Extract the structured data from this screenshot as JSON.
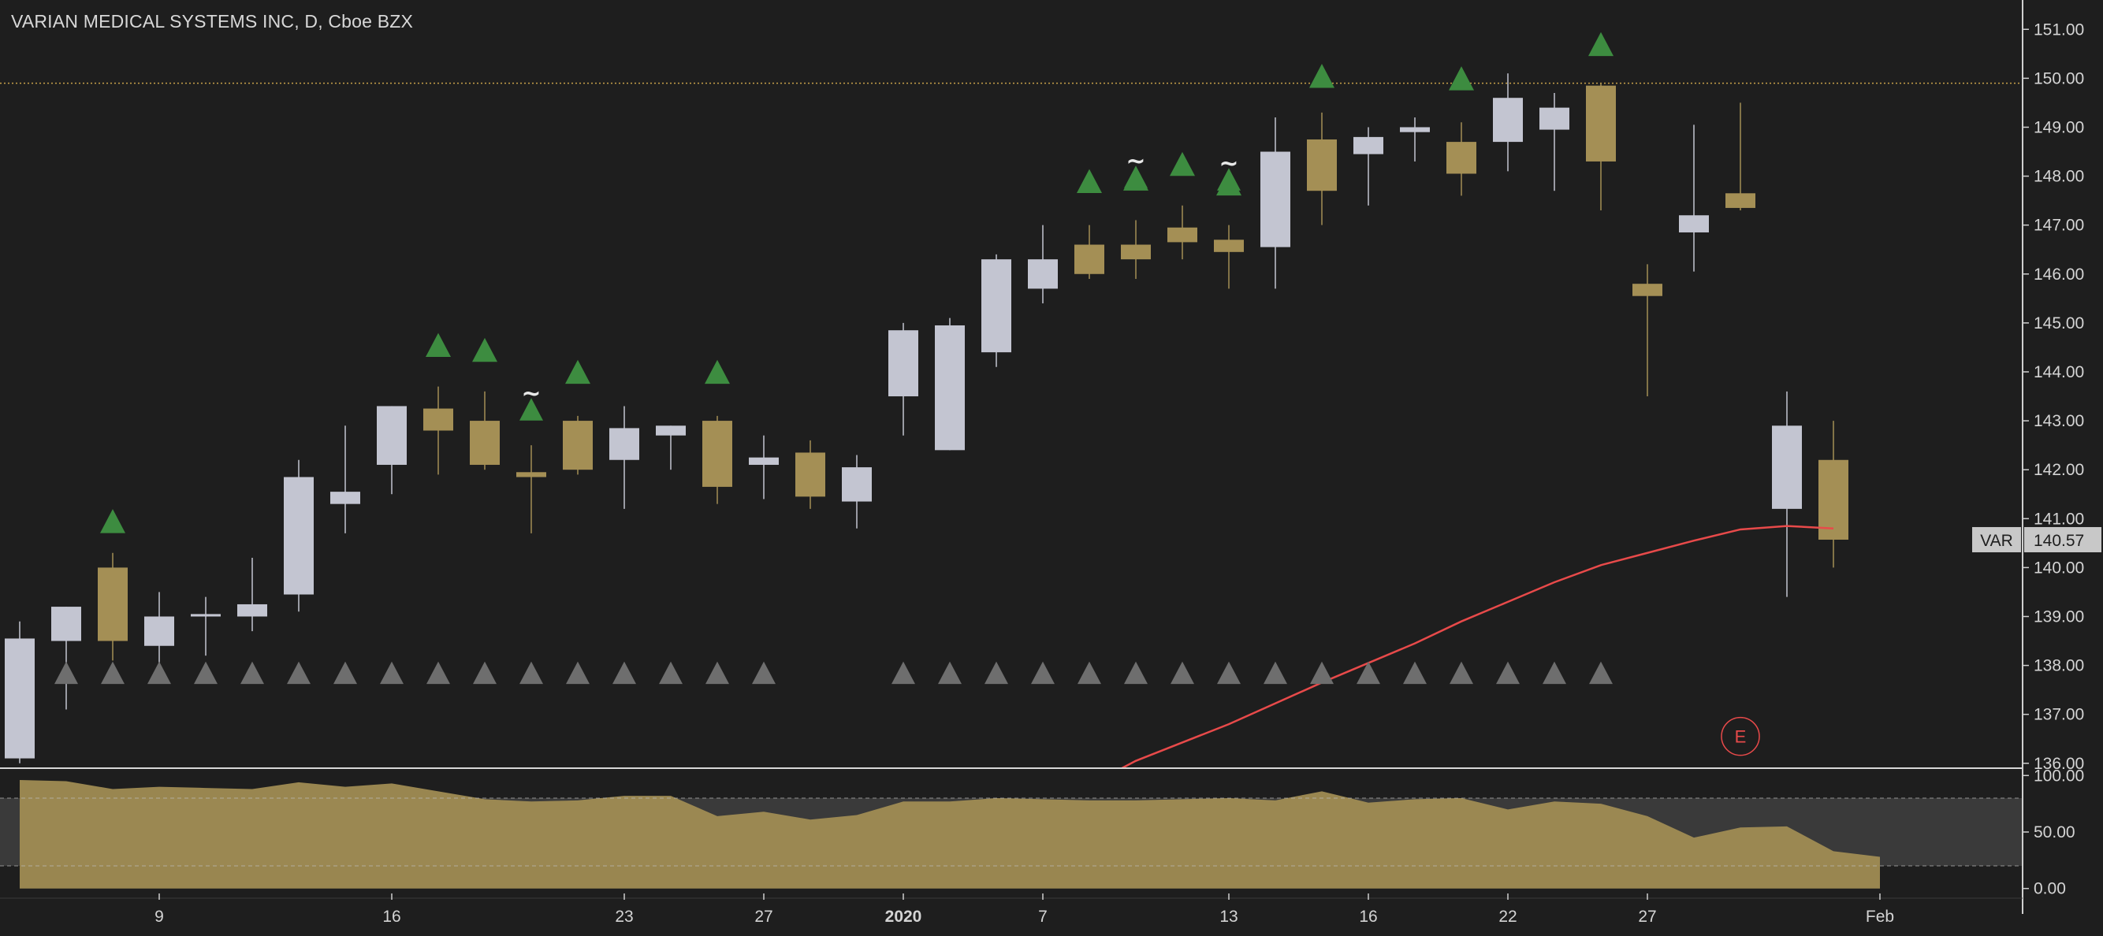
{
  "header": {
    "title": "VARIAN MEDICAL SYSTEMS INC, D, Cboe BZX"
  },
  "colors": {
    "background": "#1e1e1e",
    "up_candle": "#c3c5d1",
    "down_candle": "#a48f55",
    "moving_average": "#e84a4a",
    "signal_up": "#3d8c40",
    "signal_neutral": "#6e6e6e",
    "oscillator_fill": "#a48f55",
    "oscillator_band": "#3a3a3a",
    "dotted_level": "#c9a24a",
    "axis_text": "#d4d4d4",
    "earnings": "#e84a4a"
  },
  "chart_data": [
    {
      "type": "candlestick",
      "symbol": "VAR",
      "last_price": "140.57",
      "ylim": [
        135.9,
        151.6
      ],
      "y_ticks": [
        "151.00",
        "150.00",
        "149.00",
        "148.00",
        "147.00",
        "146.00",
        "145.00",
        "144.00",
        "143.00",
        "142.00",
        "141.00",
        "140.00",
        "139.00",
        "138.00",
        "137.00",
        "136.00"
      ],
      "x_ticks": [
        {
          "label": "9",
          "idx": 3
        },
        {
          "label": "16",
          "idx": 8
        },
        {
          "label": "23",
          "idx": 13
        },
        {
          "label": "27",
          "idx": 16
        },
        {
          "label": "2020",
          "idx": 19
        },
        {
          "label": "7",
          "idx": 22
        },
        {
          "label": "13",
          "idx": 26
        },
        {
          "label": "16",
          "idx": 29
        },
        {
          "label": "22",
          "idx": 32
        },
        {
          "label": "27",
          "idx": 35
        },
        {
          "label": "Feb",
          "idx": 40
        }
      ],
      "reference_level": 149.9,
      "candles": [
        {
          "o": 136.1,
          "h": 138.9,
          "l": 136.0,
          "c": 138.55
        },
        {
          "o": 138.5,
          "h": 139.2,
          "l": 137.1,
          "c": 139.2
        },
        {
          "o": 140.0,
          "h": 140.3,
          "l": 138.1,
          "c": 138.5
        },
        {
          "o": 138.4,
          "h": 139.5,
          "l": 137.7,
          "c": 139.0
        },
        {
          "o": 139.0,
          "h": 139.4,
          "l": 138.2,
          "c": 139.05
        },
        {
          "o": 139.0,
          "h": 140.2,
          "l": 138.7,
          "c": 139.25
        },
        {
          "o": 139.45,
          "h": 142.2,
          "l": 139.1,
          "c": 141.85
        },
        {
          "o": 141.3,
          "h": 142.9,
          "l": 140.7,
          "c": 141.55
        },
        {
          "o": 142.1,
          "h": 143.3,
          "l": 141.5,
          "c": 143.3
        },
        {
          "o": 143.25,
          "h": 143.7,
          "l": 141.9,
          "c": 142.8
        },
        {
          "o": 143.0,
          "h": 143.6,
          "l": 142.0,
          "c": 142.1
        },
        {
          "o": 141.95,
          "h": 142.5,
          "l": 140.7,
          "c": 141.85
        },
        {
          "o": 143.0,
          "h": 143.1,
          "l": 141.9,
          "c": 142.0
        },
        {
          "o": 142.2,
          "h": 143.3,
          "l": 141.2,
          "c": 142.85
        },
        {
          "o": 142.7,
          "h": 142.9,
          "l": 142.0,
          "c": 142.9
        },
        {
          "o": 143.0,
          "h": 143.1,
          "l": 141.3,
          "c": 141.65
        },
        {
          "o": 142.1,
          "h": 142.7,
          "l": 141.4,
          "c": 142.25
        },
        {
          "o": 142.35,
          "h": 142.6,
          "l": 141.2,
          "c": 141.45
        },
        {
          "o": 141.35,
          "h": 142.3,
          "l": 140.8,
          "c": 142.05
        },
        {
          "o": 143.5,
          "h": 145.0,
          "l": 142.7,
          "c": 144.85
        },
        {
          "o": 142.4,
          "h": 145.1,
          "l": 142.4,
          "c": 144.95
        },
        {
          "o": 144.4,
          "h": 146.4,
          "l": 144.1,
          "c": 146.3
        },
        {
          "o": 145.7,
          "h": 147.0,
          "l": 145.4,
          "c": 146.3
        },
        {
          "o": 146.6,
          "h": 147.0,
          "l": 145.9,
          "c": 146.0
        },
        {
          "o": 146.6,
          "h": 147.1,
          "l": 145.9,
          "c": 146.3
        },
        {
          "o": 146.95,
          "h": 147.4,
          "l": 146.3,
          "c": 146.65
        },
        {
          "o": 146.7,
          "h": 147.0,
          "l": 145.7,
          "c": 146.45
        },
        {
          "o": 146.55,
          "h": 149.2,
          "l": 145.7,
          "c": 148.5
        },
        {
          "o": 148.75,
          "h": 149.3,
          "l": 147.0,
          "c": 147.7
        },
        {
          "o": 148.45,
          "h": 149.0,
          "l": 147.4,
          "c": 148.8
        },
        {
          "o": 148.9,
          "h": 149.2,
          "l": 148.3,
          "c": 149.0
        },
        {
          "o": 148.7,
          "h": 149.1,
          "l": 147.6,
          "c": 148.05
        },
        {
          "o": 148.7,
          "h": 150.1,
          "l": 148.1,
          "c": 149.6
        },
        {
          "o": 148.95,
          "h": 149.7,
          "l": 147.7,
          "c": 149.4
        },
        {
          "o": 149.85,
          "h": 149.9,
          "l": 147.3,
          "c": 148.3
        },
        {
          "o": 145.8,
          "h": 146.2,
          "l": 143.5,
          "c": 145.55
        },
        {
          "o": 146.85,
          "h": 149.05,
          "l": 146.05,
          "c": 147.2
        },
        {
          "o": 147.65,
          "h": 149.5,
          "l": 147.3,
          "c": 147.35
        },
        {
          "o": 141.2,
          "h": 143.6,
          "l": 139.4,
          "c": 142.9
        },
        {
          "o": 142.2,
          "h": 143.0,
          "l": 140.0,
          "c": 140.57
        }
      ],
      "moving_average": [
        {
          "idx": 23.7,
          "v": 135.9
        },
        {
          "idx": 24,
          "v": 136.05
        },
        {
          "idx": 26,
          "v": 136.8
        },
        {
          "idx": 28,
          "v": 137.65
        },
        {
          "idx": 30,
          "v": 138.45
        },
        {
          "idx": 31,
          "v": 138.9
        },
        {
          "idx": 32,
          "v": 139.3
        },
        {
          "idx": 33,
          "v": 139.7
        },
        {
          "idx": 34,
          "v": 140.05
        },
        {
          "idx": 35,
          "v": 140.3
        },
        {
          "idx": 36,
          "v": 140.55
        },
        {
          "idx": 37,
          "v": 140.78
        },
        {
          "idx": 38,
          "v": 140.85
        },
        {
          "idx": 39,
          "v": 140.8
        }
      ],
      "signals_up": [
        {
          "idx": 2,
          "v": 140.95
        },
        {
          "idx": 9,
          "v": 144.55
        },
        {
          "idx": 10,
          "v": 144.45
        },
        {
          "idx": 12,
          "v": 144.0
        },
        {
          "idx": 15,
          "v": 144.0
        },
        {
          "idx": 23,
          "v": 147.9
        },
        {
          "idx": 24,
          "v": 147.95
        },
        {
          "idx": 25,
          "v": 148.25
        },
        {
          "idx": 26,
          "v": 147.85
        },
        {
          "idx": 28,
          "v": 150.05
        },
        {
          "idx": 31,
          "v": 150.0
        },
        {
          "idx": 34,
          "v": 150.7
        }
      ],
      "signals_tilde": [
        {
          "idx": 11,
          "v": 143.3
        },
        {
          "idx": 24,
          "v": 148.05
        },
        {
          "idx": 26,
          "v": 148.0
        }
      ],
      "neutral_markers_level": 137.85,
      "neutral_markers_idx": [
        1,
        2,
        3,
        4,
        5,
        6,
        7,
        8,
        9,
        10,
        11,
        12,
        13,
        14,
        15,
        16,
        19,
        20,
        21,
        22,
        23,
        24,
        25,
        26,
        27,
        28,
        29,
        30,
        31,
        32,
        33,
        34
      ],
      "earnings_marker": {
        "idx": 37,
        "v": 136.55,
        "label": "E"
      }
    },
    {
      "type": "area",
      "name": "oscillator",
      "ylim": [
        -3,
        103
      ],
      "y_ticks": [
        "100.00",
        "50.00",
        "0.00"
      ],
      "bands": [
        20,
        80
      ],
      "values": [
        96,
        95,
        88,
        90,
        89,
        88,
        94,
        90,
        93,
        86,
        79,
        77,
        78,
        82,
        82,
        64,
        68,
        61,
        65,
        77,
        77,
        80,
        79,
        78,
        78,
        79,
        80,
        78,
        86,
        76,
        79,
        80,
        70,
        77,
        75,
        64,
        45,
        54,
        55,
        33,
        28
      ]
    }
  ]
}
